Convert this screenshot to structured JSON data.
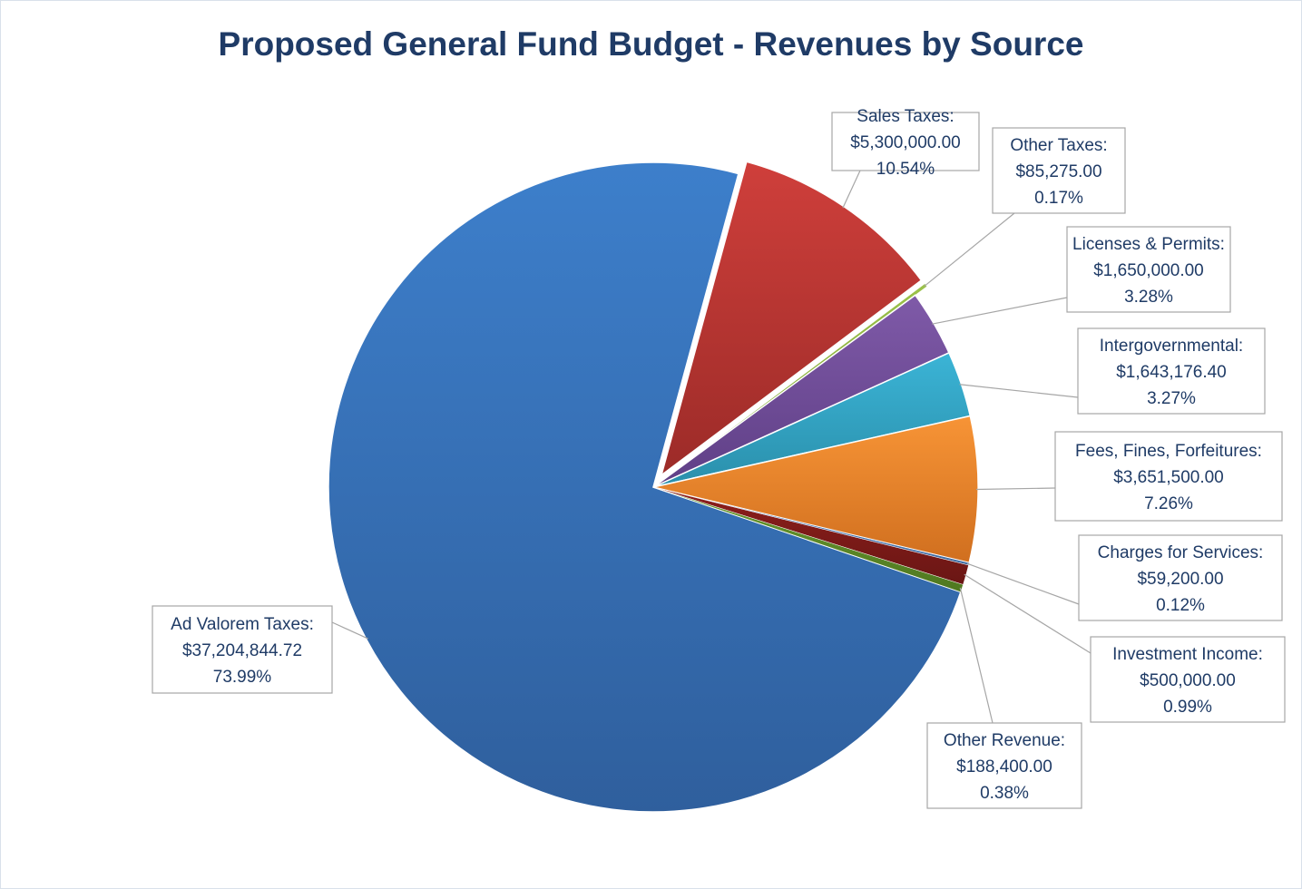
{
  "chart_data": {
    "type": "pie",
    "title": "Proposed General Fund Budget - Revenues by Source",
    "slices": [
      {
        "name": "Ad Valorem Taxes:",
        "value": "$37,204,844.72",
        "percent": "73.99%",
        "pct": 73.99,
        "color_top": "#3d7fcb",
        "color_bottom": "#2f5f9d",
        "exploded": false
      },
      {
        "name": "Sales Taxes:",
        "value": "$5,300,000.00",
        "percent": "10.54%",
        "pct": 10.54,
        "color_top": "#cf3f3b",
        "color_bottom": "#9c2b28",
        "exploded": true
      },
      {
        "name": "Other Taxes:",
        "value": "$85,275.00",
        "percent": "0.17%",
        "pct": 0.17,
        "color_top": "#9bc24a",
        "color_bottom": "#7fa23a",
        "exploded": true
      },
      {
        "name": "Licenses & Permits:",
        "value": "$1,650,000.00",
        "percent": "3.28%",
        "pct": 3.28,
        "color_top": "#7f5aa8",
        "color_bottom": "#5f3f86",
        "exploded": false
      },
      {
        "name": "Intergovernmental:",
        "value": "$1,643,176.40",
        "percent": "3.27%",
        "pct": 3.27,
        "color_top": "#3bb4d6",
        "color_bottom": "#2a8fab",
        "exploded": false
      },
      {
        "name": "Fees, Fines, Forfeitures:",
        "value": "$3,651,500.00",
        "percent": "7.26%",
        "pct": 7.26,
        "color_top": "#f79436",
        "color_bottom": "#d06f1f",
        "exploded": false
      },
      {
        "name": "Charges for Services:",
        "value": "$59,200.00",
        "percent": "0.12%",
        "pct": 0.12,
        "color_top": "#5a8ac6",
        "color_bottom": "#3e6aa0",
        "exploded": false
      },
      {
        "name": "Investment Income:",
        "value": "$500,000.00",
        "percent": "0.99%",
        "pct": 0.99,
        "color_top": "#8e1f1c",
        "color_bottom": "#6a1614",
        "exploded": false
      },
      {
        "name": "Other Revenue:",
        "value": "$188,400.00",
        "percent": "0.38%",
        "pct": 0.38,
        "color_top": "#6a9a2e",
        "color_bottom": "#4f7820",
        "exploded": false
      }
    ]
  }
}
